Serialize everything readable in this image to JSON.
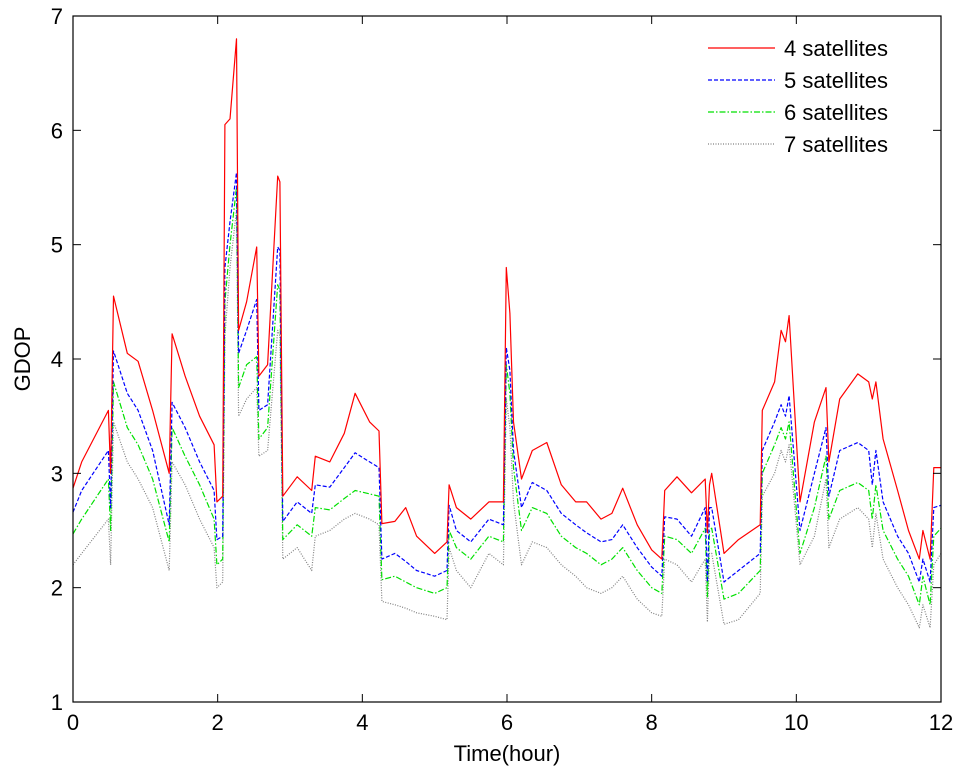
{
  "chart_data": {
    "type": "line",
    "title": "",
    "xlabel": "Time(hour)",
    "ylabel": "GDOP",
    "xlim": [
      0,
      12
    ],
    "ylim": [
      1,
      7
    ],
    "xticks": [
      0,
      2,
      4,
      6,
      8,
      10,
      12
    ],
    "yticks": [
      1,
      2,
      3,
      4,
      5,
      6,
      7
    ],
    "grid": false,
    "legend_position": "top-right",
    "series": [
      {
        "name": "4 satellites",
        "color": "#ff0000",
        "dash": "solid",
        "x": [
          0.0,
          0.12,
          0.49,
          0.52,
          0.56,
          0.75,
          0.9,
          1.1,
          1.33,
          1.37,
          1.55,
          1.75,
          1.95,
          1.99,
          2.07,
          2.1,
          2.17,
          2.26,
          2.29,
          2.4,
          2.54,
          2.57,
          2.69,
          2.83,
          2.86,
          2.88,
          2.9,
          3.1,
          3.3,
          3.35,
          3.55,
          3.75,
          3.9,
          4.1,
          4.23,
          4.27,
          4.45,
          4.6,
          4.75,
          5.0,
          5.17,
          5.2,
          5.3,
          5.5,
          5.75,
          5.95,
          5.99,
          6.04,
          6.09,
          6.2,
          6.35,
          6.55,
          6.75,
          6.95,
          7.1,
          7.3,
          7.45,
          7.6,
          7.8,
          8.0,
          8.14,
          8.18,
          8.35,
          8.55,
          8.74,
          8.77,
          8.8,
          8.83,
          9.0,
          9.2,
          9.5,
          9.53,
          9.7,
          9.79,
          9.85,
          9.9,
          10.05,
          10.25,
          10.41,
          10.45,
          10.6,
          10.85,
          11.0,
          11.05,
          11.1,
          11.2,
          11.4,
          11.55,
          11.7,
          11.75,
          11.85,
          11.9,
          12.0
        ],
        "y": [
          2.87,
          3.1,
          3.55,
          3.0,
          4.55,
          4.05,
          3.98,
          3.55,
          3.0,
          4.22,
          3.85,
          3.5,
          3.25,
          2.75,
          2.8,
          6.05,
          6.1,
          6.8,
          4.25,
          4.5,
          4.98,
          3.85,
          3.95,
          5.6,
          5.55,
          4.2,
          2.8,
          2.97,
          2.85,
          3.15,
          3.1,
          3.35,
          3.7,
          3.45,
          3.37,
          2.56,
          2.58,
          2.7,
          2.45,
          2.3,
          2.4,
          2.9,
          2.7,
          2.6,
          2.75,
          2.75,
          4.8,
          4.4,
          3.45,
          2.95,
          3.2,
          3.27,
          2.9,
          2.75,
          2.75,
          2.6,
          2.65,
          2.87,
          2.55,
          2.33,
          2.25,
          2.85,
          2.97,
          2.83,
          2.95,
          2.48,
          2.9,
          3.0,
          2.3,
          2.42,
          2.55,
          3.55,
          3.8,
          4.25,
          4.15,
          4.38,
          2.75,
          3.45,
          3.75,
          3.1,
          3.65,
          3.87,
          3.8,
          3.65,
          3.8,
          3.3,
          2.85,
          2.5,
          2.25,
          2.5,
          2.25,
          3.05,
          3.05
        ]
      },
      {
        "name": "5 satellites",
        "color": "#0000ff",
        "dash": "dashed",
        "x": [
          0.0,
          0.12,
          0.49,
          0.52,
          0.56,
          0.75,
          0.9,
          1.1,
          1.33,
          1.37,
          1.55,
          1.75,
          1.95,
          1.99,
          2.07,
          2.1,
          2.17,
          2.26,
          2.29,
          2.4,
          2.54,
          2.57,
          2.69,
          2.83,
          2.86,
          2.88,
          2.9,
          3.1,
          3.3,
          3.35,
          3.55,
          3.75,
          3.9,
          4.1,
          4.23,
          4.27,
          4.45,
          4.6,
          4.75,
          5.0,
          5.17,
          5.2,
          5.3,
          5.5,
          5.75,
          5.95,
          5.99,
          6.04,
          6.09,
          6.2,
          6.35,
          6.55,
          6.75,
          6.95,
          7.1,
          7.3,
          7.45,
          7.6,
          7.8,
          8.0,
          8.14,
          8.18,
          8.35,
          8.55,
          8.74,
          8.77,
          8.8,
          8.83,
          9.0,
          9.2,
          9.5,
          9.53,
          9.7,
          9.79,
          9.85,
          9.9,
          10.05,
          10.25,
          10.41,
          10.45,
          10.6,
          10.85,
          11.0,
          11.05,
          11.1,
          11.2,
          11.4,
          11.55,
          11.7,
          11.75,
          11.85,
          11.9,
          12.0
        ],
        "y": [
          2.66,
          2.85,
          3.2,
          2.7,
          4.07,
          3.7,
          3.55,
          3.2,
          2.55,
          3.62,
          3.4,
          3.1,
          2.85,
          2.42,
          2.45,
          4.8,
          5.2,
          5.63,
          4.05,
          4.25,
          4.52,
          3.55,
          3.6,
          4.98,
          4.95,
          3.7,
          2.58,
          2.75,
          2.65,
          2.9,
          2.88,
          3.05,
          3.18,
          3.1,
          3.05,
          2.25,
          2.3,
          2.23,
          2.15,
          2.1,
          2.15,
          2.72,
          2.5,
          2.4,
          2.6,
          2.55,
          4.1,
          3.9,
          3.2,
          2.7,
          2.92,
          2.85,
          2.65,
          2.55,
          2.48,
          2.4,
          2.42,
          2.55,
          2.35,
          2.18,
          2.1,
          2.62,
          2.6,
          2.45,
          2.7,
          2.05,
          2.7,
          2.7,
          2.05,
          2.15,
          2.3,
          3.2,
          3.45,
          3.6,
          3.5,
          3.68,
          2.5,
          3.0,
          3.4,
          2.8,
          3.2,
          3.27,
          3.2,
          2.9,
          3.2,
          2.75,
          2.45,
          2.3,
          2.05,
          2.25,
          2.05,
          2.7,
          2.72
        ]
      },
      {
        "name": "6 satellites",
        "color": "#00e000",
        "dash": "dashdot",
        "x": [
          0.0,
          0.12,
          0.49,
          0.52,
          0.56,
          0.75,
          0.9,
          1.1,
          1.33,
          1.37,
          1.55,
          1.75,
          1.95,
          1.99,
          2.07,
          2.1,
          2.17,
          2.26,
          2.29,
          2.4,
          2.54,
          2.57,
          2.69,
          2.83,
          2.86,
          2.88,
          2.9,
          3.1,
          3.3,
          3.35,
          3.55,
          3.75,
          3.9,
          4.1,
          4.23,
          4.27,
          4.45,
          4.6,
          4.75,
          5.0,
          5.17,
          5.2,
          5.3,
          5.5,
          5.75,
          5.95,
          5.99,
          6.04,
          6.09,
          6.2,
          6.35,
          6.55,
          6.75,
          6.95,
          7.1,
          7.3,
          7.45,
          7.6,
          7.8,
          8.0,
          8.14,
          8.18,
          8.35,
          8.55,
          8.74,
          8.77,
          8.8,
          8.83,
          9.0,
          9.2,
          9.5,
          9.53,
          9.7,
          9.79,
          9.85,
          9.9,
          10.05,
          10.25,
          10.41,
          10.45,
          10.6,
          10.85,
          11.0,
          11.05,
          11.1,
          11.2,
          11.4,
          11.55,
          11.7,
          11.75,
          11.85,
          11.9,
          12.0
        ],
        "y": [
          2.47,
          2.6,
          2.95,
          2.5,
          3.8,
          3.4,
          3.25,
          2.95,
          2.4,
          3.4,
          3.15,
          2.9,
          2.6,
          2.2,
          2.25,
          4.5,
          5.0,
          5.5,
          3.75,
          3.95,
          4.02,
          3.3,
          3.4,
          4.65,
          4.6,
          3.5,
          2.42,
          2.55,
          2.45,
          2.7,
          2.68,
          2.78,
          2.85,
          2.82,
          2.8,
          2.07,
          2.1,
          2.05,
          2.0,
          1.95,
          2.0,
          2.5,
          2.35,
          2.25,
          2.45,
          2.4,
          3.95,
          3.7,
          3.05,
          2.5,
          2.7,
          2.65,
          2.45,
          2.35,
          2.3,
          2.2,
          2.25,
          2.35,
          2.15,
          2.0,
          1.95,
          2.45,
          2.42,
          2.3,
          2.52,
          1.92,
          2.5,
          2.52,
          1.9,
          1.95,
          2.15,
          3.0,
          3.25,
          3.4,
          3.3,
          3.45,
          2.3,
          2.7,
          3.15,
          2.6,
          2.85,
          2.92,
          2.85,
          2.6,
          2.9,
          2.5,
          2.25,
          2.1,
          1.85,
          2.1,
          1.85,
          2.45,
          2.52
        ]
      },
      {
        "name": "7 satellites",
        "color": "#808080",
        "dash": "dotted",
        "x": [
          0.0,
          0.12,
          0.49,
          0.52,
          0.56,
          0.75,
          0.9,
          1.1,
          1.33,
          1.37,
          1.55,
          1.75,
          1.95,
          1.99,
          2.07,
          2.1,
          2.17,
          2.26,
          2.29,
          2.4,
          2.54,
          2.57,
          2.69,
          2.83,
          2.86,
          2.88,
          2.9,
          3.1,
          3.3,
          3.35,
          3.55,
          3.75,
          3.9,
          4.1,
          4.23,
          4.27,
          4.45,
          4.6,
          4.75,
          5.0,
          5.17,
          5.2,
          5.3,
          5.5,
          5.75,
          5.95,
          5.99,
          6.04,
          6.09,
          6.2,
          6.35,
          6.55,
          6.75,
          6.95,
          7.1,
          7.3,
          7.45,
          7.6,
          7.8,
          8.0,
          8.14,
          8.18,
          8.35,
          8.55,
          8.74,
          8.77,
          8.8,
          8.83,
          9.0,
          9.2,
          9.5,
          9.53,
          9.7,
          9.79,
          9.85,
          9.9,
          10.05,
          10.25,
          10.41,
          10.45,
          10.6,
          10.85,
          11.0,
          11.05,
          11.1,
          11.2,
          11.4,
          11.55,
          11.7,
          11.75,
          11.85,
          11.9,
          12.0
        ],
        "y": [
          2.2,
          2.3,
          2.6,
          2.2,
          3.45,
          3.1,
          2.95,
          2.7,
          2.15,
          3.1,
          2.9,
          2.6,
          2.35,
          2.0,
          2.05,
          4.2,
          4.8,
          5.3,
          3.5,
          3.65,
          3.75,
          3.15,
          3.2,
          4.25,
          4.2,
          3.3,
          2.25,
          2.35,
          2.15,
          2.45,
          2.5,
          2.6,
          2.65,
          2.6,
          2.55,
          1.88,
          1.85,
          1.82,
          1.78,
          1.75,
          1.72,
          2.35,
          2.15,
          2.0,
          2.3,
          2.2,
          3.65,
          3.4,
          2.75,
          2.2,
          2.4,
          2.35,
          2.2,
          2.1,
          2.0,
          1.95,
          2.0,
          2.1,
          1.9,
          1.78,
          1.75,
          2.25,
          2.2,
          2.05,
          2.25,
          1.7,
          2.3,
          2.3,
          1.68,
          1.72,
          1.95,
          2.8,
          3.0,
          3.2,
          3.1,
          3.25,
          2.2,
          2.45,
          2.95,
          2.35,
          2.6,
          2.7,
          2.6,
          2.35,
          2.65,
          2.25,
          2.0,
          1.85,
          1.65,
          1.85,
          1.65,
          2.2,
          2.3
        ]
      }
    ]
  }
}
